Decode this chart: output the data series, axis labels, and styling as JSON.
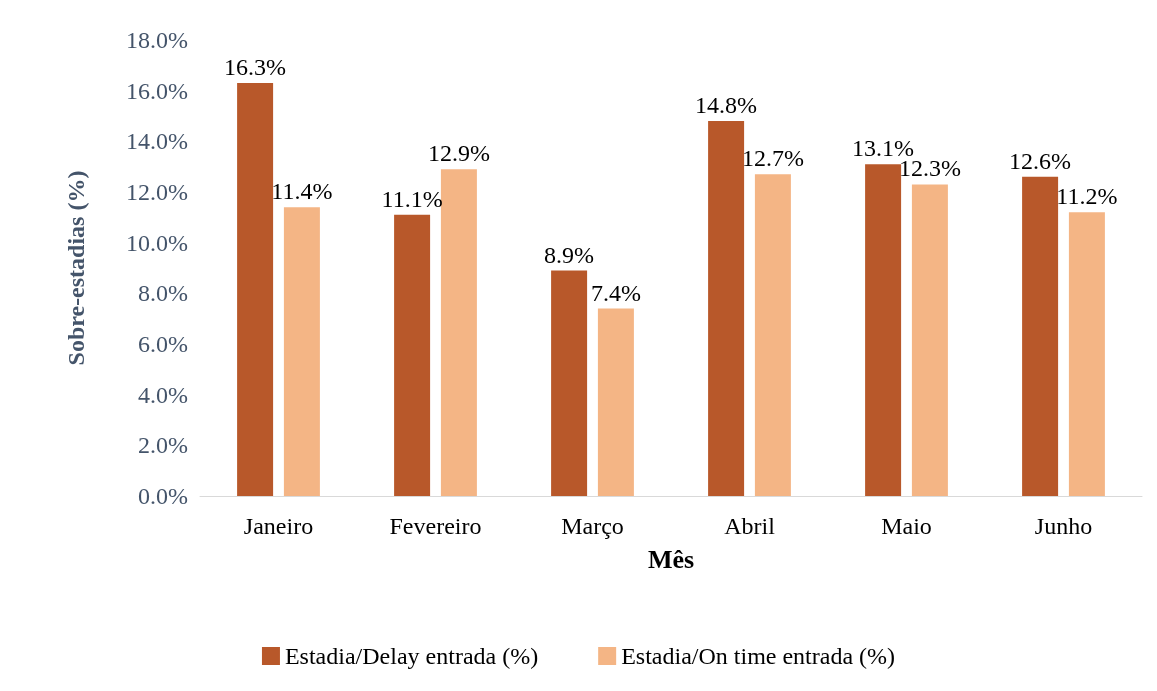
{
  "chart_data": {
    "type": "bar",
    "xlabel": "Mês",
    "ylabel": "Sobre-estadias (%)",
    "categories": [
      "Janeiro",
      "Fevereiro",
      "Março",
      "Abril",
      "Maio",
      "Junho"
    ],
    "series": [
      {
        "name": "Estadia/Delay entrada (%)",
        "color": "#b8582a",
        "values": [
          16.3,
          11.1,
          8.9,
          14.8,
          13.1,
          12.6
        ],
        "value_labels": [
          "16.3%",
          "11.1%",
          "8.9%",
          "14.8%",
          "13.1%",
          "12.6%"
        ]
      },
      {
        "name": "Estadia/On time entrada (%)",
        "color": "#f4b585",
        "values": [
          11.4,
          12.9,
          7.4,
          12.7,
          12.3,
          11.2
        ],
        "value_labels": [
          "11.4%",
          "12.9%",
          "7.4%",
          "12.7%",
          "12.3%",
          "11.2%"
        ]
      }
    ],
    "ylim": [
      0,
      18
    ],
    "yticks": [
      {
        "value": 0,
        "label": "0.0%"
      },
      {
        "value": 2,
        "label": "2.0%"
      },
      {
        "value": 4,
        "label": "4.0%"
      },
      {
        "value": 6,
        "label": "6.0%"
      },
      {
        "value": 8,
        "label": "8.0%"
      },
      {
        "value": 10,
        "label": "10.0%"
      },
      {
        "value": 12,
        "label": "12.0%"
      },
      {
        "value": 14,
        "label": "14.0%"
      },
      {
        "value": 16,
        "label": "16.0%"
      },
      {
        "value": 18,
        "label": "18.0%"
      }
    ],
    "grid": false,
    "legend": "bottom"
  }
}
